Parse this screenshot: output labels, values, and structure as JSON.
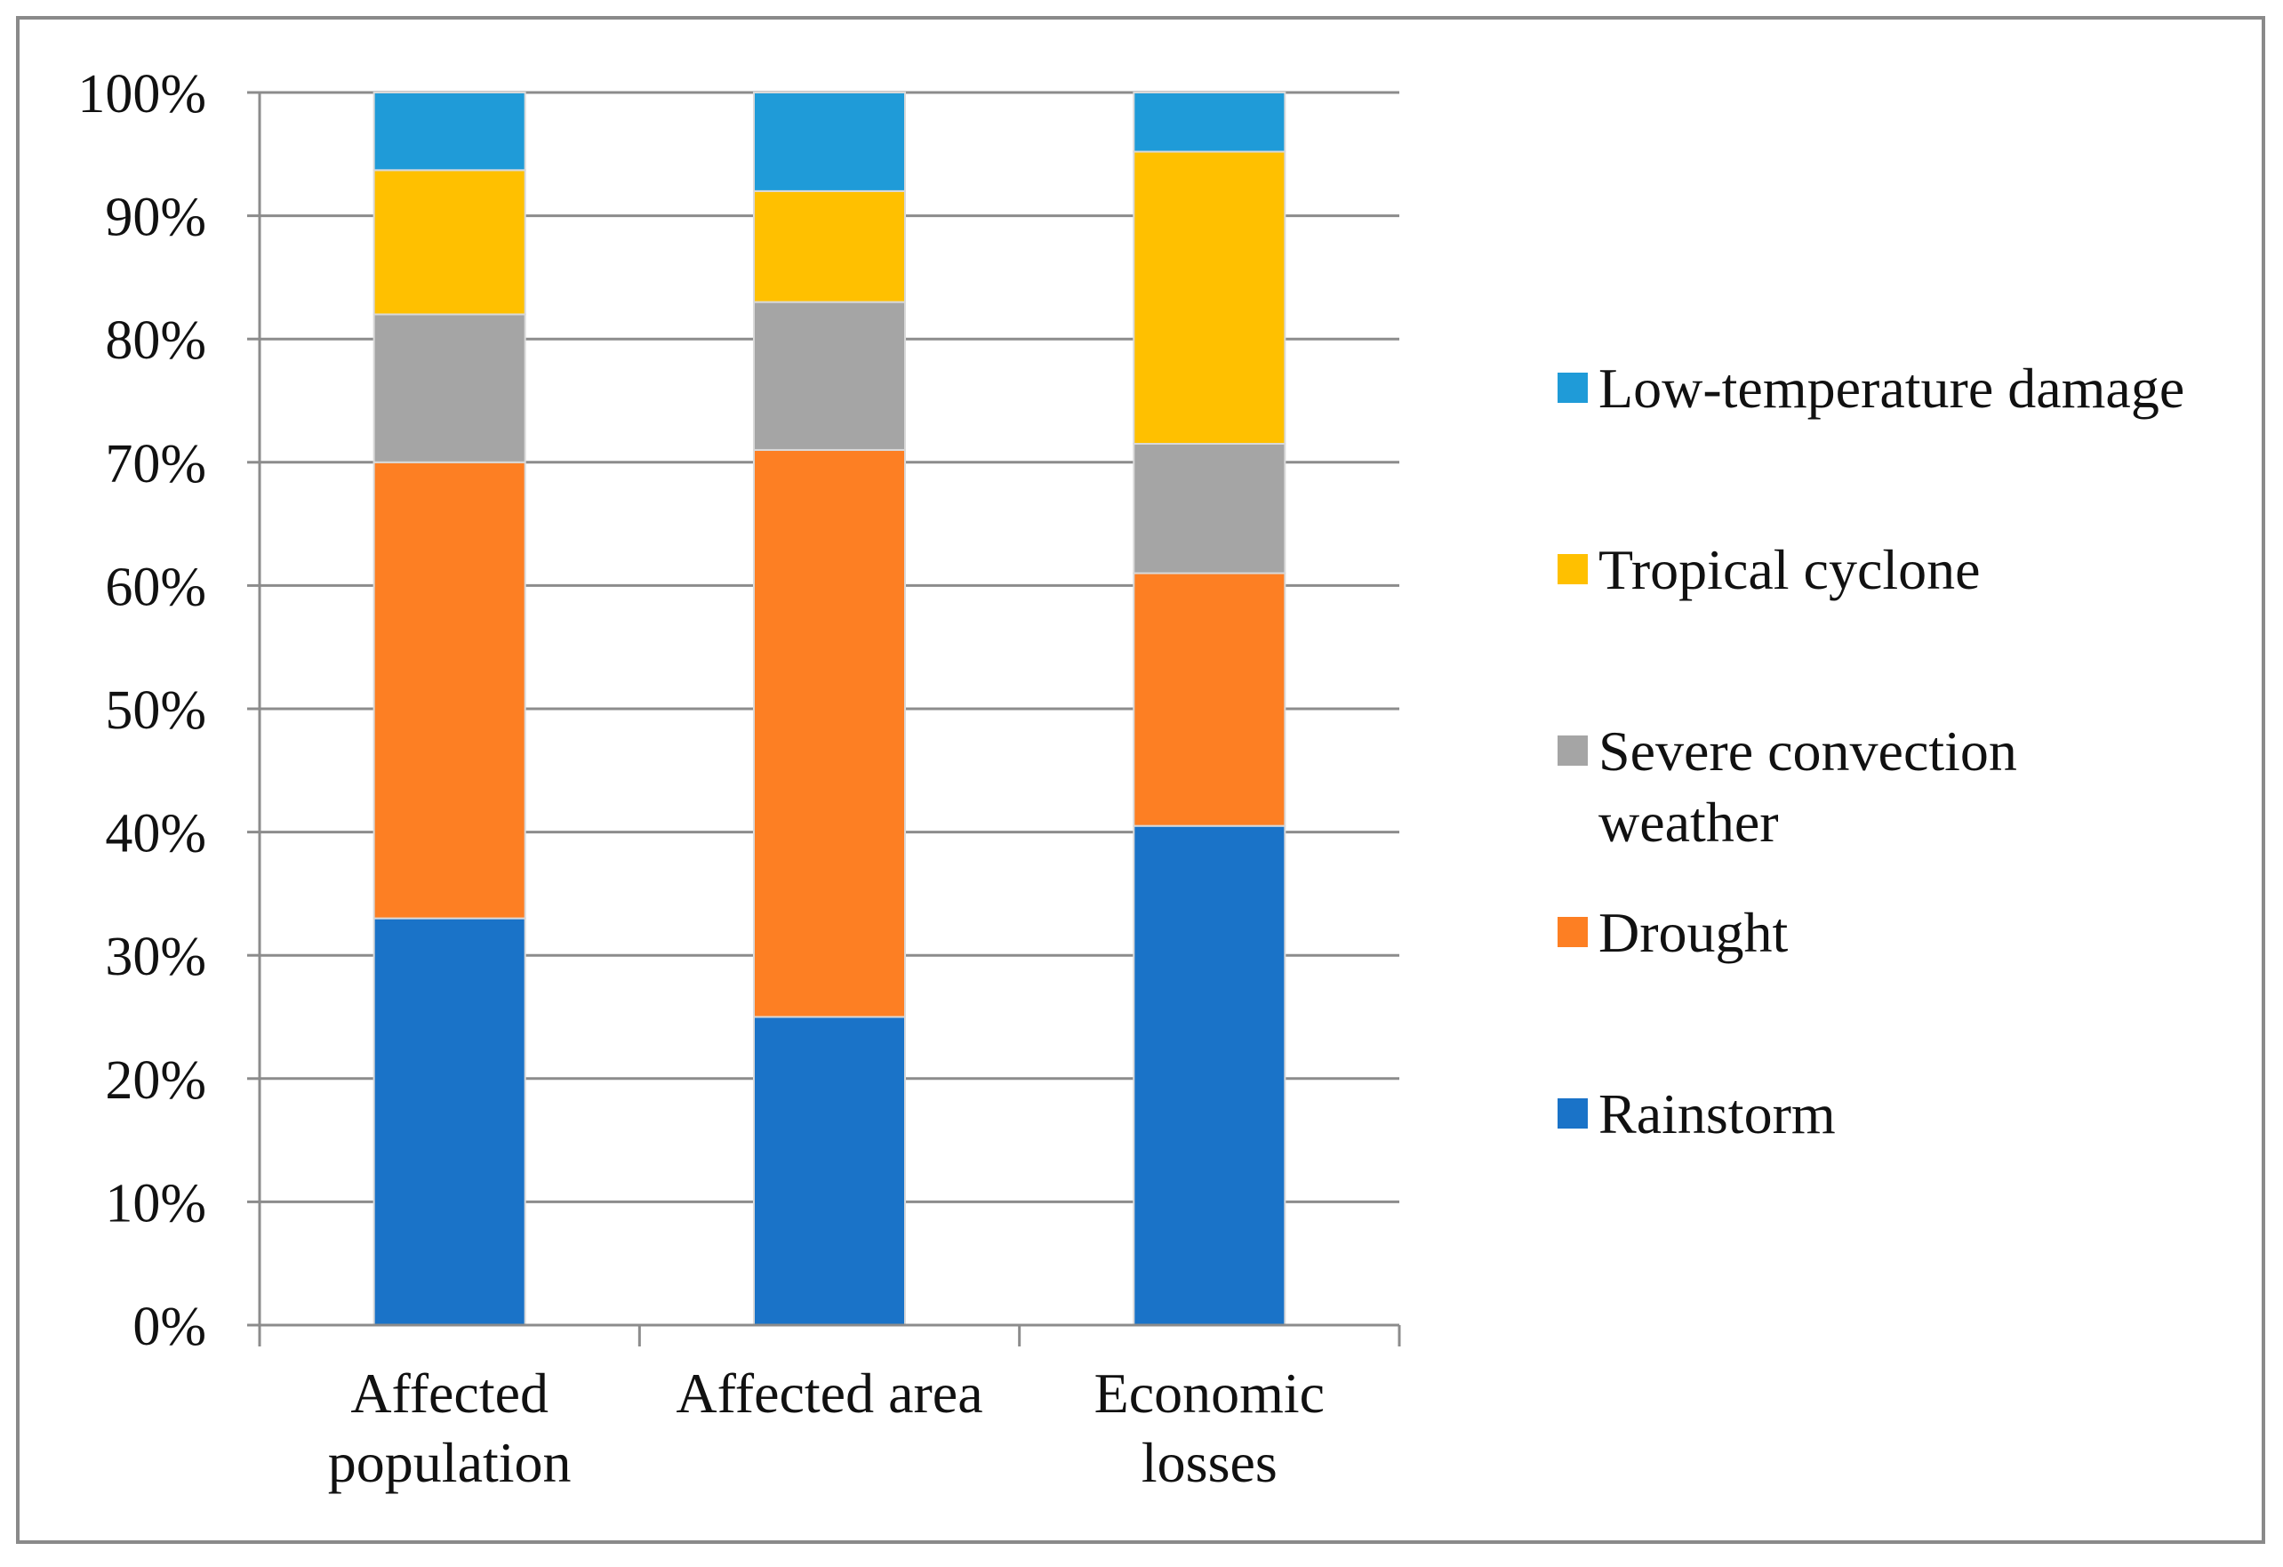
{
  "chart_data": {
    "type": "bar",
    "stacked": true,
    "percent_stacked": true,
    "categories": [
      [
        "Affected",
        "population"
      ],
      [
        "Affected area"
      ],
      [
        "Economic",
        "losses"
      ]
    ],
    "series": [
      {
        "name": "Rainstorm",
        "color": "#1a73c8",
        "values": [
          33,
          25,
          40.5
        ]
      },
      {
        "name": "Drought",
        "color": "#fd7f23",
        "values": [
          37,
          46,
          20.5
        ]
      },
      {
        "name": [
          "Severe convection",
          "weather"
        ],
        "color": "#a5a5a5",
        "values": [
          12,
          12,
          10.5
        ]
      },
      {
        "name": "Tropical cyclone",
        "color": "#ffc000",
        "values": [
          11.7,
          9,
          23.7
        ]
      },
      {
        "name": "Low-temperature damage",
        "color": "#1f9bd8",
        "values": [
          6.3,
          8,
          4.8
        ]
      }
    ],
    "y_ticks": [
      "0%",
      "10%",
      "20%",
      "30%",
      "40%",
      "50%",
      "60%",
      "70%",
      "80%",
      "90%",
      "100%"
    ],
    "ylim": [
      0,
      100
    ],
    "grid": true,
    "legend_position": "right",
    "title": "",
    "xlabel": "",
    "ylabel": ""
  }
}
